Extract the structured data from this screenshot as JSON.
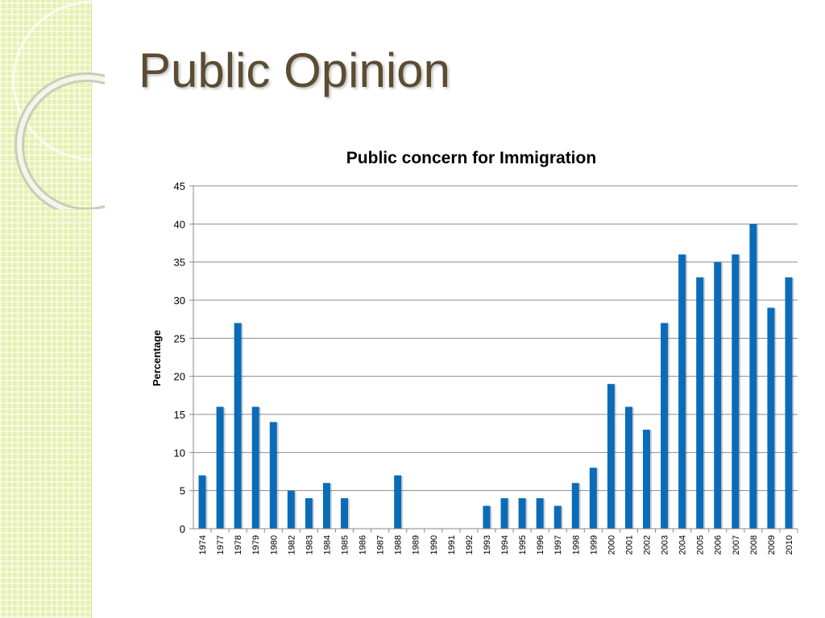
{
  "slide": {
    "title": "Public Opinion"
  },
  "colors": {
    "bar": "#0a6cb8",
    "title": "#5b4c32",
    "side_band": "#e6f0b0"
  },
  "chart_data": {
    "type": "bar",
    "title": "Public concern for Immigration",
    "xlabel": "",
    "ylabel": "Percentage",
    "ylim": [
      0,
      45
    ],
    "yticks": [
      0,
      5,
      10,
      15,
      20,
      25,
      30,
      35,
      40,
      45
    ],
    "grid": true,
    "legend": "none",
    "categories": [
      "1974",
      "1977",
      "1978",
      "1979",
      "1980",
      "1982",
      "1983",
      "1984",
      "1985",
      "1986",
      "1987",
      "1988",
      "1989",
      "1990",
      "1991",
      "1992",
      "1993",
      "1994",
      "1995",
      "1996",
      "1997",
      "1998",
      "1999",
      "2000",
      "2001",
      "2002",
      "2003",
      "2004",
      "2005",
      "2006",
      "2007",
      "2008",
      "2009",
      "2010"
    ],
    "values": [
      7,
      16,
      27,
      16,
      14,
      5,
      4,
      6,
      4,
      0,
      0,
      7,
      0,
      0,
      0,
      0,
      3,
      4,
      4,
      4,
      3,
      6,
      8,
      19,
      16,
      13,
      27,
      36,
      33,
      35,
      36,
      40,
      29,
      33
    ]
  }
}
